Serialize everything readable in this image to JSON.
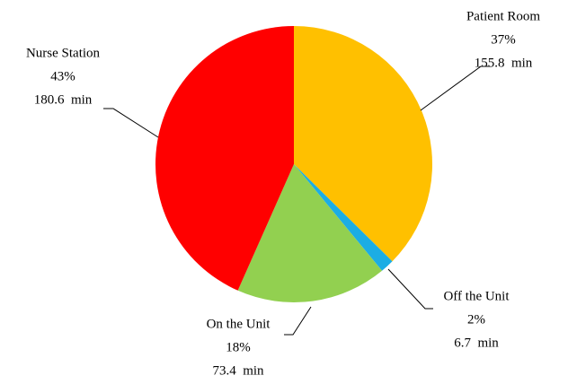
{
  "chart_data": {
    "type": "pie",
    "categories": [
      "Patient Room",
      "Off the Unit",
      "On the Unit",
      "Nurse Station"
    ],
    "values": [
      155.8,
      6.7,
      73.4,
      180.6
    ],
    "value_labels": [
      "155.8  min",
      "6.7  min",
      "73.4  min",
      "180.6  min"
    ],
    "percentages": [
      37,
      2,
      18,
      43
    ],
    "percentage_labels": [
      "37%",
      "2%",
      "18%",
      "43%"
    ],
    "colors": [
      "#FFC000",
      "#1CADE4",
      "#92D050",
      "#FF0000"
    ]
  }
}
